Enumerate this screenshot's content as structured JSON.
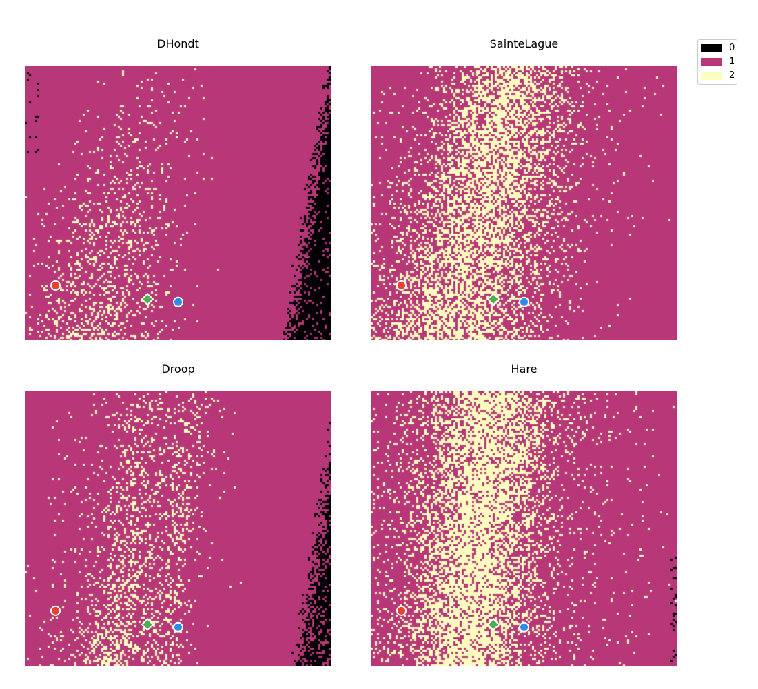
{
  "colors": {
    "0": "#000004",
    "1": "#b73779",
    "2": "#fcfdbf",
    "marker_red": "#e8412d",
    "marker_blue": "#2e8ce8",
    "marker_green": "#4cae4c",
    "marker_edge": "#ffffff"
  },
  "legend": {
    "items": [
      {
        "label": "0",
        "color": "#000004"
      },
      {
        "label": "1",
        "color": "#b73779"
      },
      {
        "label": "2",
        "color": "#fcfdbf"
      }
    ],
    "placement": "top-right"
  },
  "chart_data": [
    {
      "type": "heatmap",
      "title": "DHondt",
      "grid": "off",
      "axes": "off",
      "categories": [
        0,
        1,
        2
      ],
      "points": [
        {
          "name": "red",
          "x": 0.1,
          "y": 0.2,
          "marker": "circle"
        },
        {
          "name": "green",
          "x": 0.4,
          "y": 0.15,
          "marker": "diamond"
        },
        {
          "name": "blue",
          "x": 0.5,
          "y": 0.14,
          "marker": "circle"
        }
      ]
    },
    {
      "type": "heatmap",
      "title": "SainteLague",
      "grid": "off",
      "axes": "off",
      "categories": [
        0,
        1,
        2
      ],
      "points": [
        {
          "name": "red",
          "x": 0.1,
          "y": 0.2,
          "marker": "circle"
        },
        {
          "name": "green",
          "x": 0.4,
          "y": 0.15,
          "marker": "diamond"
        },
        {
          "name": "blue",
          "x": 0.5,
          "y": 0.14,
          "marker": "circle"
        }
      ]
    },
    {
      "type": "heatmap",
      "title": "Droop",
      "grid": "off",
      "axes": "off",
      "categories": [
        0,
        1,
        2
      ],
      "points": [
        {
          "name": "red",
          "x": 0.1,
          "y": 0.2,
          "marker": "circle"
        },
        {
          "name": "green",
          "x": 0.4,
          "y": 0.15,
          "marker": "diamond"
        },
        {
          "name": "blue",
          "x": 0.5,
          "y": 0.14,
          "marker": "circle"
        }
      ]
    },
    {
      "type": "heatmap",
      "title": "Hare",
      "grid": "off",
      "axes": "off",
      "categories": [
        0,
        1,
        2
      ],
      "points": [
        {
          "name": "red",
          "x": 0.1,
          "y": 0.2,
          "marker": "circle"
        },
        {
          "name": "green",
          "x": 0.4,
          "y": 0.15,
          "marker": "diamond"
        },
        {
          "name": "blue",
          "x": 0.5,
          "y": 0.14,
          "marker": "circle"
        }
      ]
    }
  ]
}
